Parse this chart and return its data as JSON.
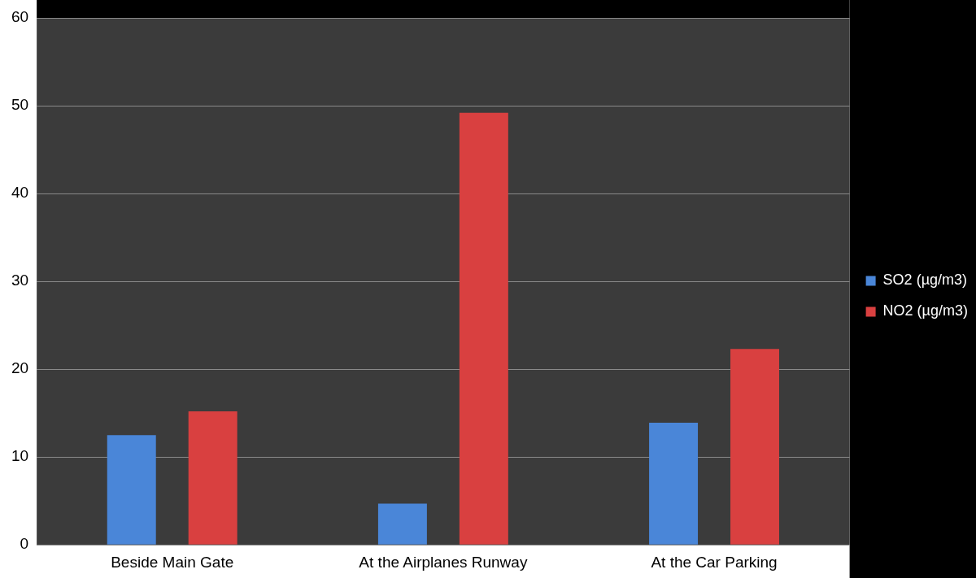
{
  "chart_data": {
    "type": "bar",
    "categories": [
      "Beside Main Gate",
      "At the Airplanes Runway",
      "At the Car Parking"
    ],
    "series": [
      {
        "name": "SO2 (µg/m3)",
        "color": "#4a86d8",
        "values": [
          12.5,
          4.7,
          13.9
        ]
      },
      {
        "name": "NO2 (µg/m3)",
        "color": "#d94040",
        "values": [
          15.2,
          49.2,
          22.3
        ]
      }
    ],
    "ylim": [
      0,
      60
    ],
    "yticks": [
      0,
      10,
      20,
      30,
      40,
      50,
      60
    ],
    "grid": "y",
    "legend": "right"
  }
}
